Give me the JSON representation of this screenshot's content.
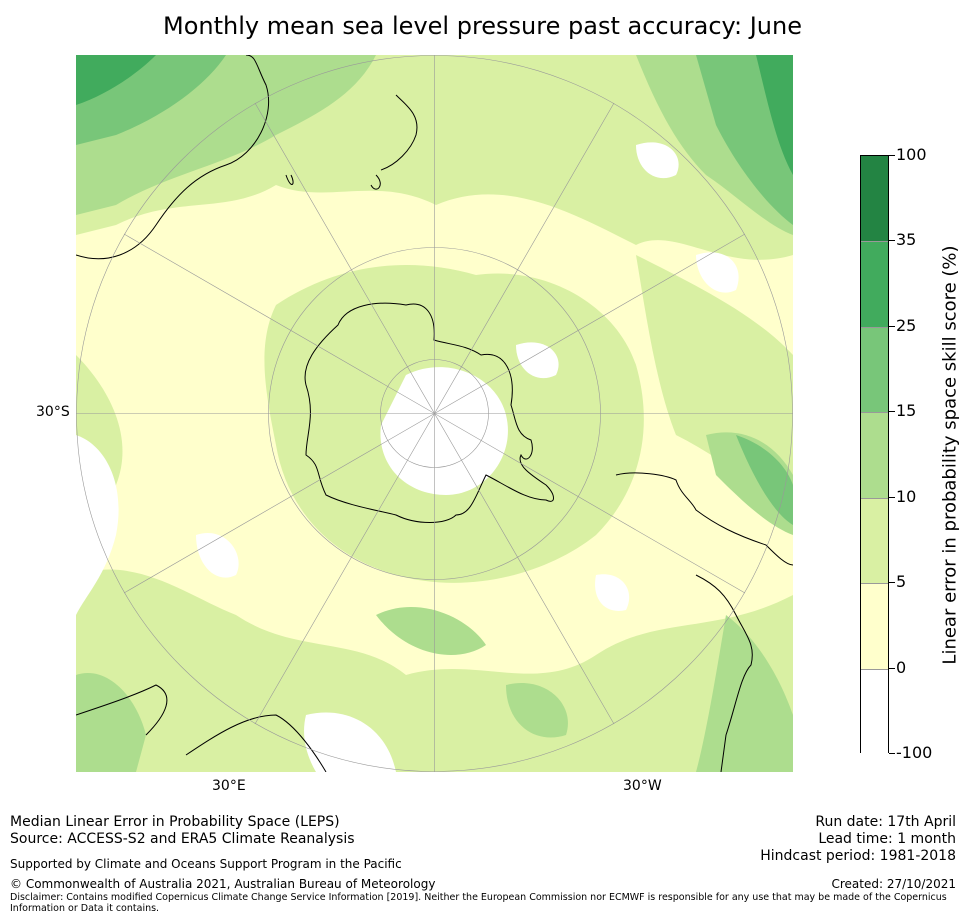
{
  "title": "Monthly mean sea level pressure past accuracy: June",
  "map": {
    "lat_label": "30°S",
    "lon_labels": [
      "30°E",
      "30°W"
    ],
    "colors": {
      "white": "#ffffff",
      "pale_yellow": "#ffffcc",
      "yellow_green": "#d9f0a3",
      "light_green": "#addd8e",
      "mid_green": "#78c679",
      "green": "#41ab5d",
      "dark_green": "#238443"
    }
  },
  "colorbar": {
    "title": "Linear error in probability space skill score (%)",
    "tick_labels": [
      "100",
      "35",
      "25",
      "15",
      "10",
      "5",
      "0",
      "-100"
    ],
    "bins": [
      {
        "from": 35,
        "to": 100,
        "color": "#238443"
      },
      {
        "from": 25,
        "to": 35,
        "color": "#41ab5d"
      },
      {
        "from": 15,
        "to": 25,
        "color": "#78c679"
      },
      {
        "from": 10,
        "to": 15,
        "color": "#addd8e"
      },
      {
        "from": 5,
        "to": 10,
        "color": "#d9f0a3"
      },
      {
        "from": 0,
        "to": 5,
        "color": "#ffffcc"
      },
      {
        "from": -100,
        "to": 0,
        "color": "#ffffff"
      }
    ]
  },
  "footer": {
    "left_line1": "Median Linear Error in Probability Space (LEPS)",
    "left_line2": "Source: ACCESS-S2 and ERA5 Climate Reanalysis",
    "support": "Supported by Climate and Oceans Support Program in the Pacific",
    "copyright": "© Commonwealth of Australia 2021, Australian Bureau of Meteorology",
    "disclaimer": "Disclaimer: Contains modified Copernicus Climate Change Service Information [2019]. Neither the European Commission nor ECMWF is responsible for any use that may be made of the Copernicus Information or Data it contains.",
    "run_date": "Run date: 17th April",
    "lead_time": "Lead time: 1 month",
    "hindcast": "Hindcast period: 1981-2018",
    "created": "Created: 27/10/2021"
  }
}
